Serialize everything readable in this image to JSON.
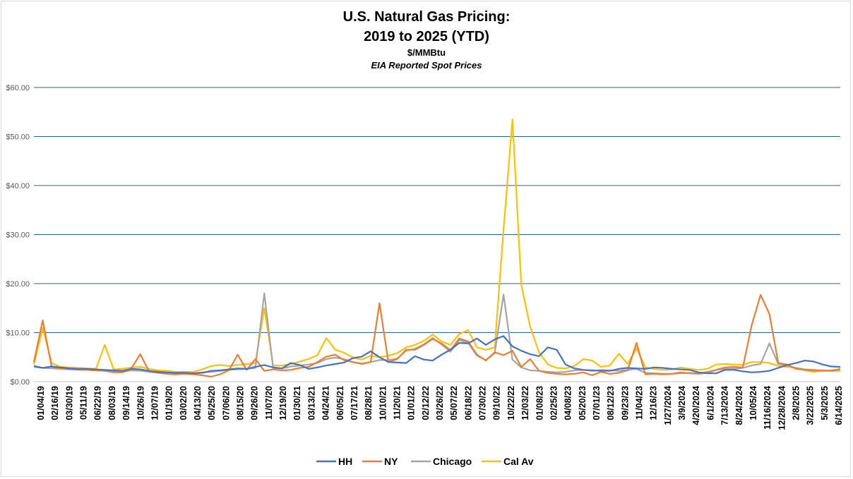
{
  "chart_data": {
    "type": "line",
    "title": "U.S. Natural Gas Pricing:",
    "title_line2": "2019 to 2025 (YTD)",
    "subtitle": "$/MMBtu",
    "subtitle2": "EIA Reported Spot Prices",
    "xlabel": "",
    "ylabel": "",
    "ylim": [
      0,
      60
    ],
    "yticks": [
      {
        "value": 0,
        "label": "$0.00"
      },
      {
        "value": 10,
        "label": "$10.00"
      },
      {
        "value": 20,
        "label": "$20.00"
      },
      {
        "value": 30,
        "label": "$30.00"
      },
      {
        "value": 40,
        "label": "$40.00"
      },
      {
        "value": 50,
        "label": "$50.00"
      },
      {
        "value": 60,
        "label": "$60.00"
      }
    ],
    "grid": true,
    "legend_position": "bottom",
    "x_tick_labels": [
      "01/04/19",
      "02/16/19",
      "03/30/19",
      "05/11/19",
      "06/22/19",
      "08/03/19",
      "09/14/19",
      "10/26/19",
      "12/07/19",
      "01/19/20",
      "03/02/20",
      "04/13/20",
      "05/25/20",
      "07/06/20",
      "08/15/20",
      "09/26/20",
      "11/07/20",
      "12/19/20",
      "01/30/21",
      "03/13/21",
      "04/24/21",
      "06/05/21",
      "07/17/21",
      "08/28/21",
      "10/10/21",
      "11/20/21",
      "01/01/22",
      "02/12/22",
      "03/26/22",
      "05/07/22",
      "06/18/22",
      "07/30/22",
      "09/10/22",
      "10/22/22",
      "12/03/22",
      "01/08/23",
      "02/25/23",
      "04/08/23",
      "05/20/23",
      "07/01/23",
      "08/12/23",
      "09/23/23",
      "11/04/23",
      "12/16/23",
      "1/27/2024",
      "3/9/2024",
      "4/20/2024",
      "6/1/2024",
      "7/13/2024",
      "8/24/2024",
      "10/05/24",
      "11/16/2024",
      "12/28/2024",
      "2/8/2025",
      "3/22/2025",
      "5/3/2025",
      "6/14/2025"
    ],
    "series": [
      {
        "name": "HH",
        "color": "#4472c4",
        "values": [
          3.2,
          2.8,
          3.1,
          2.9,
          2.7,
          2.6,
          2.6,
          2.5,
          2.4,
          2.3,
          2.2,
          2.6,
          2.5,
          2.2,
          2.0,
          1.9,
          1.8,
          1.8,
          1.7,
          1.8,
          2.2,
          2.3,
          2.5,
          2.7,
          2.6,
          3.0,
          3.4,
          2.9,
          2.7,
          3.8,
          3.4,
          2.6,
          2.9,
          3.3,
          3.6,
          3.9,
          4.8,
          5.1,
          6.2,
          5.0,
          4.0,
          3.9,
          3.8,
          5.2,
          4.5,
          4.3,
          5.5,
          6.5,
          7.9,
          7.8,
          8.8,
          7.5,
          8.6,
          9.3,
          7.2,
          6.3,
          5.6,
          5.2,
          7.0,
          6.5,
          3.5,
          2.7,
          2.4,
          2.3,
          2.2,
          2.2,
          2.6,
          2.8,
          2.7,
          2.6,
          2.9,
          2.8,
          2.6,
          2.5,
          2.4,
          1.9,
          1.7,
          1.7,
          2.4,
          2.4,
          2.1,
          1.9,
          2.0,
          2.2,
          2.8,
          3.4,
          3.8,
          4.3,
          4.1,
          3.5,
          3.1,
          3.0
        ]
      },
      {
        "name": "NY",
        "color": "#ed7d31",
        "values": [
          4.0,
          12.5,
          3.0,
          2.7,
          2.6,
          2.5,
          2.4,
          2.3,
          2.2,
          1.9,
          1.9,
          2.7,
          5.6,
          2.1,
          1.8,
          1.6,
          1.5,
          1.6,
          1.5,
          1.3,
          1.0,
          1.5,
          2.3,
          5.5,
          2.4,
          4.6,
          2.2,
          2.5,
          2.3,
          2.4,
          2.8,
          3.0,
          4.0,
          5.1,
          5.5,
          4.4,
          4.0,
          3.6,
          4.0,
          16.0,
          4.0,
          4.6,
          6.5,
          6.5,
          7.5,
          8.7,
          7.8,
          6.4,
          8.8,
          8.2,
          5.5,
          4.3,
          6.0,
          5.4,
          6.3,
          3.0,
          4.6,
          2.2,
          1.8,
          1.6,
          1.5,
          1.6,
          1.9,
          1.3,
          2.0,
          1.6,
          1.8,
          2.3,
          7.9,
          1.5,
          1.6,
          1.5,
          1.6,
          1.9,
          1.7,
          1.6,
          1.8,
          2.4,
          2.9,
          3.0,
          2.9,
          11.5,
          17.7,
          13.8,
          3.8,
          3.5,
          2.6,
          2.4,
          2.3,
          2.3,
          2.2,
          2.5
        ]
      },
      {
        "name": "Chicago",
        "color": "#a5a5a5",
        "values": [
          3.0,
          2.8,
          2.7,
          2.6,
          2.5,
          2.4,
          2.4,
          2.3,
          2.2,
          2.1,
          2.0,
          2.3,
          2.2,
          2.0,
          1.8,
          1.7,
          1.6,
          1.6,
          1.7,
          1.9,
          2.0,
          2.2,
          2.4,
          2.5,
          2.6,
          2.8,
          18.0,
          2.8,
          2.7,
          3.1,
          3.3,
          3.5,
          3.8,
          4.6,
          4.9,
          4.6,
          4.0,
          3.7,
          4.0,
          4.4,
          4.4,
          4.7,
          6.3,
          6.7,
          7.6,
          8.9,
          7.6,
          6.1,
          8.5,
          7.9,
          5.3,
          4.4,
          5.8,
          17.8,
          4.5,
          2.9,
          2.3,
          2.2,
          2.0,
          1.9,
          2.0,
          2.3,
          2.4,
          2.2,
          2.4,
          2.3,
          2.2,
          2.4,
          2.6,
          1.8,
          1.7,
          1.6,
          1.6,
          1.7,
          1.8,
          1.7,
          2.0,
          2.4,
          2.6,
          2.6,
          2.8,
          3.3,
          3.6,
          7.8,
          3.6,
          3.3,
          2.8,
          2.5,
          2.4,
          2.2,
          2.3,
          2.6
        ]
      },
      {
        "name": "Cal Av",
        "color": "#ffc000",
        "values": [
          3.5,
          11.0,
          3.8,
          3.0,
          2.9,
          2.8,
          2.7,
          2.6,
          7.5,
          2.5,
          2.6,
          2.9,
          3.0,
          2.6,
          2.3,
          2.2,
          2.0,
          2.0,
          2.0,
          2.5,
          3.2,
          3.4,
          3.2,
          3.4,
          3.6,
          3.8,
          15.0,
          3.3,
          3.3,
          3.6,
          4.1,
          4.6,
          5.4,
          8.9,
          6.5,
          5.9,
          4.9,
          4.5,
          5.3,
          5.0,
          5.3,
          5.8,
          7.0,
          7.5,
          8.3,
          9.6,
          8.2,
          7.5,
          9.7,
          10.5,
          7.0,
          6.5,
          7.0,
          31.0,
          53.5,
          19.8,
          11.2,
          6.0,
          3.5,
          2.8,
          2.7,
          3.2,
          4.6,
          4.3,
          3.0,
          3.3,
          5.7,
          3.6,
          6.8,
          2.9,
          2.6,
          2.4,
          2.5,
          2.9,
          2.6,
          2.4,
          2.6,
          3.5,
          3.6,
          3.5,
          3.4,
          4.0,
          4.0,
          3.8,
          3.2,
          3.0,
          2.8,
          2.3,
          2.0,
          2.2,
          2.2,
          2.2
        ]
      }
    ]
  },
  "legend": {
    "items": [
      {
        "name": "HH",
        "color": "#4472c4"
      },
      {
        "name": "NY",
        "color": "#ed7d31"
      },
      {
        "name": "Chicago",
        "color": "#a5a5a5"
      },
      {
        "name": "Cal Av",
        "color": "#ffc000"
      }
    ]
  }
}
